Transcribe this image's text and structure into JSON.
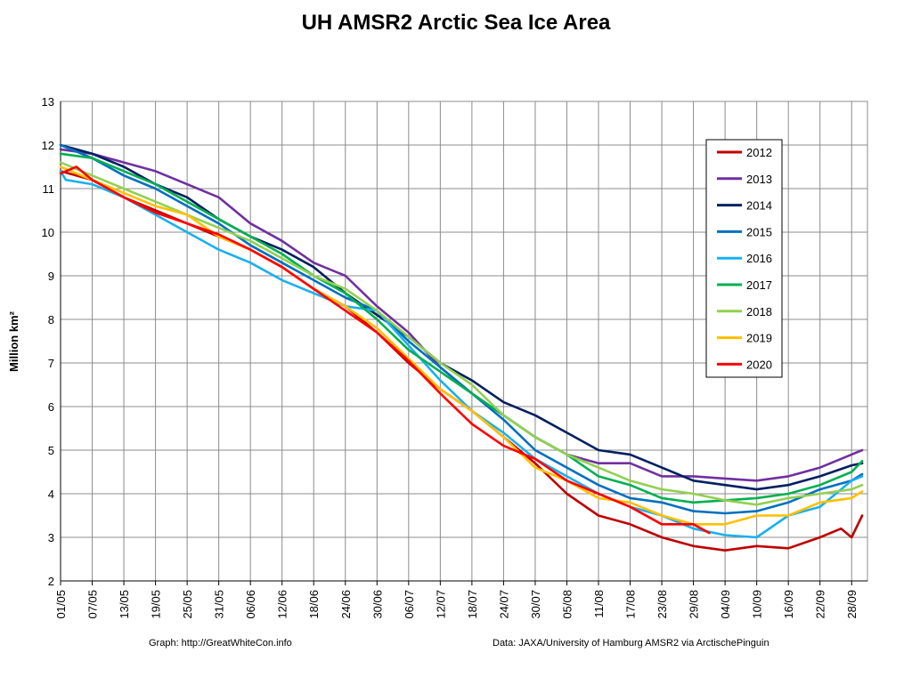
{
  "chart_data": {
    "type": "line",
    "title": "UH AMSR2 Arctic Sea Ice Area",
    "ylabel": "Million km²",
    "xlabel": "",
    "ylim": [
      2,
      13
    ],
    "yticks": [
      2,
      3,
      4,
      5,
      6,
      7,
      8,
      9,
      10,
      11,
      12,
      13
    ],
    "xlim": [
      "01/05",
      "01/10"
    ],
    "xticks": [
      "01/05",
      "07/05",
      "13/05",
      "19/05",
      "25/05",
      "31/05",
      "06/06",
      "12/06",
      "18/06",
      "24/06",
      "30/06",
      "06/07",
      "12/07",
      "18/07",
      "24/07",
      "30/07",
      "05/08",
      "11/08",
      "17/08",
      "23/08",
      "29/08",
      "04/09",
      "10/09",
      "16/09",
      "22/09",
      "28/09"
    ],
    "grid": true,
    "legend_position": "top-right",
    "series": [
      {
        "name": "2012",
        "color": "#c00000",
        "x": [
          "01/05",
          "07/05",
          "13/05",
          "19/05",
          "25/05",
          "31/05",
          "06/06",
          "12/06",
          "18/06",
          "24/06",
          "30/06",
          "06/07",
          "12/07",
          "18/07",
          "24/07",
          "30/07",
          "05/08",
          "11/08",
          "17/08",
          "23/08",
          "29/08",
          "04/09",
          "10/09",
          "16/09",
          "22/09",
          "26/09",
          "28/09",
          "30/09"
        ],
        "values": [
          11.4,
          11.2,
          10.8,
          10.5,
          10.2,
          9.9,
          9.6,
          9.2,
          8.7,
          8.3,
          7.7,
          7.0,
          6.4,
          5.9,
          5.3,
          4.7,
          4.0,
          3.5,
          3.3,
          3.0,
          2.8,
          2.7,
          2.8,
          2.75,
          3.0,
          3.2,
          3.0,
          3.5
        ]
      },
      {
        "name": "2013",
        "color": "#7030a0",
        "x": [
          "01/05",
          "07/05",
          "13/05",
          "19/05",
          "25/05",
          "31/05",
          "06/06",
          "12/06",
          "18/06",
          "24/06",
          "30/06",
          "06/07",
          "12/07",
          "18/07",
          "24/07",
          "30/07",
          "05/08",
          "11/08",
          "17/08",
          "23/08",
          "29/08",
          "04/09",
          "10/09",
          "16/09",
          "22/09",
          "28/09",
          "30/09"
        ],
        "values": [
          11.9,
          11.8,
          11.6,
          11.4,
          11.1,
          10.8,
          10.2,
          9.8,
          9.3,
          9.0,
          8.3,
          7.7,
          6.9,
          6.3,
          5.8,
          5.3,
          4.9,
          4.7,
          4.7,
          4.4,
          4.4,
          4.35,
          4.3,
          4.4,
          4.6,
          4.9,
          5.0
        ]
      },
      {
        "name": "2014",
        "color": "#002060",
        "x": [
          "01/05",
          "07/05",
          "13/05",
          "19/05",
          "25/05",
          "31/05",
          "06/06",
          "12/06",
          "18/06",
          "24/06",
          "30/06",
          "06/07",
          "12/07",
          "18/07",
          "24/07",
          "30/07",
          "05/08",
          "11/08",
          "17/08",
          "23/08",
          "29/08",
          "04/09",
          "10/09",
          "16/09",
          "22/09",
          "28/09",
          "30/09"
        ],
        "values": [
          12.0,
          11.8,
          11.5,
          11.1,
          10.8,
          10.3,
          9.9,
          9.6,
          9.2,
          8.6,
          8.1,
          7.6,
          7.0,
          6.6,
          6.1,
          5.8,
          5.4,
          5.0,
          4.9,
          4.6,
          4.3,
          4.2,
          4.1,
          4.2,
          4.4,
          4.65,
          4.7
        ]
      },
      {
        "name": "2015",
        "color": "#0070c0",
        "x": [
          "01/05",
          "07/05",
          "13/05",
          "19/05",
          "25/05",
          "31/05",
          "06/06",
          "12/06",
          "18/06",
          "24/06",
          "30/06",
          "06/07",
          "12/07",
          "18/07",
          "24/07",
          "30/07",
          "05/08",
          "11/08",
          "17/08",
          "23/08",
          "29/08",
          "04/09",
          "10/09",
          "16/09",
          "22/09",
          "28/09",
          "30/09"
        ],
        "values": [
          12.0,
          11.7,
          11.3,
          11.0,
          10.6,
          10.2,
          9.7,
          9.3,
          8.9,
          8.5,
          8.2,
          7.5,
          6.9,
          6.3,
          5.7,
          5.0,
          4.6,
          4.2,
          3.9,
          3.8,
          3.6,
          3.55,
          3.6,
          3.8,
          4.1,
          4.3,
          4.45
        ]
      },
      {
        "name": "2016",
        "color": "#1ab0ef",
        "x": [
          "01/05",
          "02/05",
          "07/05",
          "13/05",
          "19/05",
          "25/05",
          "31/05",
          "06/06",
          "12/06",
          "18/06",
          "24/06",
          "30/06",
          "06/07",
          "12/07",
          "18/07",
          "24/07",
          "30/07",
          "05/08",
          "11/08",
          "17/08",
          "23/08",
          "29/08",
          "04/09",
          "10/09",
          "16/09",
          "22/09",
          "28/09",
          "30/09"
        ],
        "values": [
          11.4,
          11.2,
          11.1,
          10.8,
          10.4,
          10.0,
          9.6,
          9.3,
          8.9,
          8.6,
          8.3,
          8.2,
          7.4,
          6.6,
          5.9,
          5.4,
          4.8,
          4.4,
          4.0,
          3.7,
          3.5,
          3.2,
          3.05,
          3.0,
          3.5,
          3.7,
          4.3,
          4.4
        ]
      },
      {
        "name": "2017",
        "color": "#00b050",
        "x": [
          "01/05",
          "07/05",
          "13/05",
          "19/05",
          "25/05",
          "31/05",
          "06/06",
          "12/06",
          "18/06",
          "24/06",
          "30/06",
          "06/07",
          "12/07",
          "18/07",
          "24/07",
          "30/07",
          "05/08",
          "11/08",
          "17/08",
          "23/08",
          "29/08",
          "04/09",
          "10/09",
          "16/09",
          "22/09",
          "28/09",
          "30/09"
        ],
        "values": [
          11.8,
          11.7,
          11.4,
          11.1,
          10.7,
          10.3,
          9.9,
          9.5,
          9.0,
          8.6,
          8.0,
          7.3,
          6.8,
          6.3,
          5.8,
          5.3,
          4.9,
          4.4,
          4.2,
          3.9,
          3.8,
          3.85,
          3.9,
          4.0,
          4.2,
          4.5,
          4.75
        ]
      },
      {
        "name": "2018",
        "color": "#92d050",
        "x": [
          "01/05",
          "07/05",
          "13/05",
          "19/05",
          "25/05",
          "31/05",
          "06/06",
          "12/06",
          "18/06",
          "24/06",
          "30/06",
          "06/07",
          "12/07",
          "18/07",
          "24/07",
          "30/07",
          "05/08",
          "11/08",
          "17/08",
          "23/08",
          "29/08",
          "04/09",
          "10/09",
          "16/09",
          "22/09",
          "28/09",
          "30/09"
        ],
        "values": [
          11.6,
          11.3,
          11.0,
          10.7,
          10.4,
          10.1,
          9.8,
          9.4,
          9.0,
          8.7,
          8.2,
          7.6,
          7.0,
          6.5,
          5.8,
          5.3,
          4.9,
          4.6,
          4.3,
          4.1,
          4.0,
          3.85,
          3.75,
          3.9,
          4.0,
          4.1,
          4.2
        ]
      },
      {
        "name": "2019",
        "color": "#ffc000",
        "x": [
          "01/05",
          "07/05",
          "13/05",
          "19/05",
          "25/05",
          "31/05",
          "06/06",
          "12/06",
          "18/06",
          "24/06",
          "30/06",
          "06/07",
          "12/07",
          "18/07",
          "24/07",
          "30/07",
          "05/08",
          "11/08",
          "17/08",
          "23/08",
          "29/08",
          "04/09",
          "10/09",
          "16/09",
          "22/09",
          "28/09",
          "30/09"
        ],
        "values": [
          11.5,
          11.2,
          10.9,
          10.6,
          10.4,
          9.9,
          9.6,
          9.2,
          8.7,
          8.3,
          7.8,
          7.1,
          6.4,
          5.9,
          5.3,
          4.6,
          4.3,
          3.9,
          3.8,
          3.5,
          3.3,
          3.3,
          3.5,
          3.5,
          3.8,
          3.9,
          4.05
        ]
      },
      {
        "name": "2020",
        "color": "#ff0000",
        "x": [
          "01/05",
          "04/05",
          "07/05",
          "13/05",
          "19/05",
          "25/05",
          "31/05",
          "06/06",
          "12/06",
          "18/06",
          "24/06",
          "30/06",
          "06/07",
          "12/07",
          "18/07",
          "24/07",
          "30/07",
          "05/08",
          "11/08",
          "17/08",
          "23/08",
          "29/08",
          "01/09"
        ],
        "values": [
          11.35,
          11.5,
          11.2,
          10.8,
          10.45,
          10.2,
          9.95,
          9.6,
          9.2,
          8.7,
          8.2,
          7.7,
          7.05,
          6.3,
          5.6,
          5.1,
          4.8,
          4.3,
          4.0,
          3.7,
          3.3,
          3.3,
          3.1
        ]
      }
    ]
  },
  "footer": {
    "left": "Graph: http://GreatWhiteCon.info",
    "right": "Data: JAXA/University of Hamburg AMSR2 via  ArctischePinguin"
  }
}
